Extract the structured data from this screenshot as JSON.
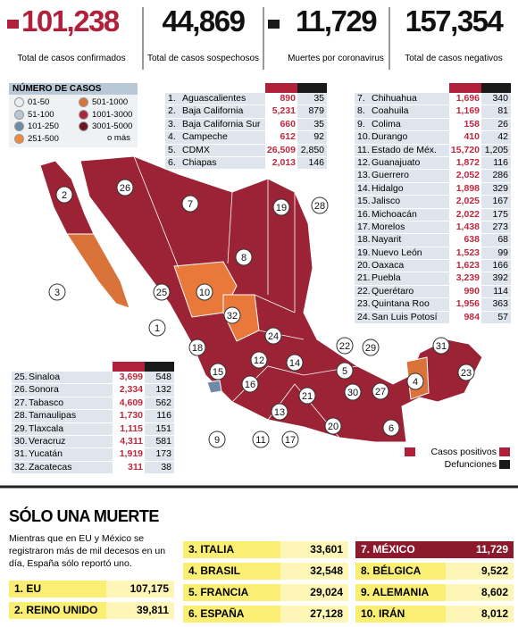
{
  "stats": [
    {
      "value": "101,238",
      "label": "Total de casos confirmados"
    },
    {
      "value": "44,869",
      "label": "Total de casos sospechosos"
    },
    {
      "value": "11,729",
      "label": "Muertes por coronavirus"
    },
    {
      "value": "157,354",
      "label": "Total de casos negativos"
    }
  ],
  "legend": {
    "title": "NÚMERO DE CASOS",
    "items": [
      "01-50",
      "51-100",
      "101-250",
      "251-500",
      "501-1000",
      "1001-3000",
      "3001-5000"
    ],
    "extra": "o más"
  },
  "tables": [
    [
      [
        "1.",
        "Aguascalientes",
        "890",
        "35"
      ],
      [
        "2.",
        "Baja California",
        "5,231",
        "879"
      ],
      [
        "3.",
        "Baja California Sur",
        "660",
        "35"
      ],
      [
        "4.",
        "Campeche",
        "612",
        "92"
      ],
      [
        "5.",
        "CDMX",
        "26,509",
        "2,850"
      ],
      [
        "6.",
        "Chiapas",
        "2,013",
        "146"
      ]
    ],
    [
      [
        "7.",
        "Chihuahua",
        "1,696",
        "340"
      ],
      [
        "8.",
        "Coahuila",
        "1,169",
        "81"
      ],
      [
        "9.",
        "Colima",
        "158",
        "26"
      ],
      [
        "10.",
        "Durango",
        "410",
        "42"
      ],
      [
        "11.",
        "Estado de Méx.",
        "15,720",
        "1,205"
      ],
      [
        "12.",
        "Guanajuato",
        "1,872",
        "116"
      ],
      [
        "13.",
        "Guerrero",
        "2,052",
        "286"
      ],
      [
        "14.",
        "Hidalgo",
        "1,898",
        "329"
      ],
      [
        "15.",
        "Jalisco",
        "2,025",
        "167"
      ],
      [
        "16.",
        "Michoacán",
        "2,022",
        "175"
      ],
      [
        "17.",
        "Morelos",
        "1,438",
        "273"
      ],
      [
        "18.",
        "Nayarit",
        "638",
        "68"
      ],
      [
        "19.",
        "Nuevo León",
        "1,523",
        "99"
      ],
      [
        "20.",
        "Oaxaca",
        "1,623",
        "166"
      ],
      [
        "21.",
        "Puebla",
        "3,239",
        "392"
      ],
      [
        "22.",
        "Querétaro",
        "990",
        "114"
      ],
      [
        "23.",
        "Quintana Roo",
        "1,956",
        "363"
      ],
      [
        "24.",
        "San Luis Potosí",
        "984",
        "57"
      ]
    ],
    [
      [
        "25.",
        "Sinaloa",
        "3,699",
        "548"
      ],
      [
        "26.",
        "Sonora",
        "2,334",
        "132"
      ],
      [
        "27.",
        "Tabasco",
        "4,609",
        "562"
      ],
      [
        "28.",
        "Tamaulipas",
        "1,730",
        "116"
      ],
      [
        "29.",
        "Tlaxcala",
        "1,115",
        "151"
      ],
      [
        "30.",
        "Veracruz",
        "4,311",
        "581"
      ],
      [
        "31.",
        "Yucatán",
        "1,919",
        "173"
      ],
      [
        "32.",
        "Zacatecas",
        "311",
        "38"
      ]
    ]
  ],
  "map_labels": [
    "2",
    "26",
    "3",
    "7",
    "19",
    "28",
    "8",
    "25",
    "10",
    "32",
    "1",
    "24",
    "22",
    "29",
    "18",
    "12",
    "14",
    "5",
    "15",
    "31",
    "23",
    "4",
    "16",
    "21",
    "30",
    "27",
    "13",
    "20",
    "6",
    "9",
    "11",
    "17"
  ],
  "map_legend": [
    "Casos positivos",
    "Defunciones"
  ],
  "section": {
    "title": "SÓLO UNA MUERTE",
    "text": "Mientras que en EU y México se registraron más de mil decesos en un día, España sólo reportó uno.",
    "ranking": [
      [
        "1. EU",
        "107,175"
      ],
      [
        "2. REINO UNIDO",
        "39,811"
      ],
      [
        "3. ITALIA",
        "33,601"
      ],
      [
        "4. BRASIL",
        "32,548"
      ],
      [
        "5. FRANCIA",
        "29,024"
      ],
      [
        "6. ESPAÑA",
        "27,128"
      ],
      [
        "7. MÉXICO",
        "11,729"
      ],
      [
        "8. BÉLGICA",
        "9,522"
      ],
      [
        "9. ALEMANIA",
        "8,602"
      ],
      [
        "10. IRÁN",
        "8,012"
      ]
    ]
  }
}
